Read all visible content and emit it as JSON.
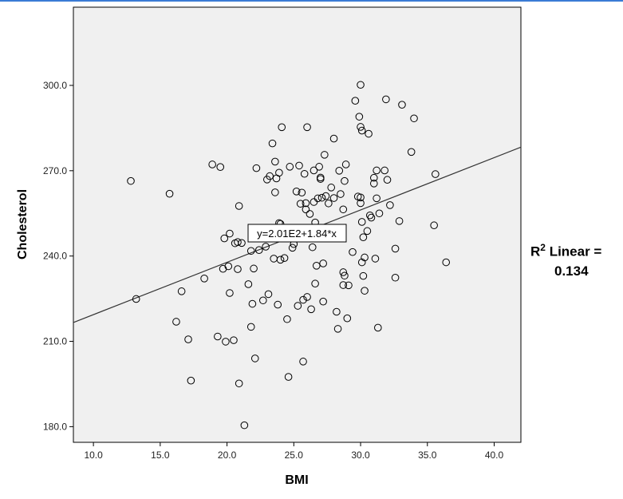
{
  "chart_data": {
    "type": "scatter",
    "xlabel": "BMI",
    "ylabel": "Cholesterol",
    "xlim": [
      8.5,
      42.0
    ],
    "ylim": [
      174.5,
      327.5
    ],
    "x_ticks": [
      "10.0",
      "15.0",
      "20.0",
      "25.0",
      "30.0",
      "35.0",
      "40.0"
    ],
    "y_ticks": [
      "180.0",
      "210.0",
      "240.0",
      "270.0",
      "300.0"
    ],
    "grid": false,
    "fit_line": {
      "equation": "y=2.01E2+1.84*x",
      "intercept": 201.0,
      "slope": 1.84,
      "r2_label_prefix": "R",
      "r2_label_sup": "2",
      "r2_label_suffix": " Linear =",
      "r2_value": "0.134"
    },
    "points": [
      [
        12.8,
        266.4
      ],
      [
        13.2,
        224.9
      ],
      [
        15.7,
        261.9
      ],
      [
        16.2,
        216.9
      ],
      [
        16.6,
        227.6
      ],
      [
        17.1,
        210.7
      ],
      [
        17.3,
        196.2
      ],
      [
        18.3,
        232.1
      ],
      [
        18.9,
        272.2
      ],
      [
        19.3,
        211.7
      ],
      [
        19.5,
        271.3
      ],
      [
        19.7,
        235.5
      ],
      [
        19.8,
        246.2
      ],
      [
        19.9,
        209.9
      ],
      [
        20.1,
        236.4
      ],
      [
        20.2,
        247.9
      ],
      [
        20.2,
        227.0
      ],
      [
        20.5,
        210.4
      ],
      [
        20.6,
        244.5
      ],
      [
        20.8,
        244.9
      ],
      [
        20.8,
        235.4
      ],
      [
        20.9,
        195.2
      ],
      [
        20.9,
        257.6
      ],
      [
        21.1,
        244.6
      ],
      [
        21.3,
        180.5
      ],
      [
        21.6,
        230.1
      ],
      [
        21.8,
        241.8
      ],
      [
        21.8,
        215.1
      ],
      [
        21.9,
        223.2
      ],
      [
        22.0,
        235.6
      ],
      [
        22.1,
        204.0
      ],
      [
        22.2,
        270.9
      ],
      [
        22.4,
        242.1
      ],
      [
        22.7,
        224.4
      ],
      [
        22.9,
        243.3
      ],
      [
        23.0,
        266.9
      ],
      [
        23.1,
        226.6
      ],
      [
        23.2,
        268.1
      ],
      [
        23.4,
        279.6
      ],
      [
        23.5,
        239.1
      ],
      [
        23.6,
        262.4
      ],
      [
        23.6,
        273.2
      ],
      [
        23.7,
        267.3
      ],
      [
        23.8,
        222.9
      ],
      [
        23.9,
        269.3
      ],
      [
        23.9,
        251.6
      ],
      [
        24.0,
        251.3
      ],
      [
        24.0,
        238.7
      ],
      [
        24.1,
        285.3
      ],
      [
        24.3,
        239.3
      ],
      [
        24.5,
        217.8
      ],
      [
        24.6,
        197.5
      ],
      [
        24.7,
        271.4
      ],
      [
        24.9,
        242.9
      ],
      [
        25.0,
        244.2
      ],
      [
        25.2,
        262.7
      ],
      [
        25.3,
        222.5
      ],
      [
        25.4,
        271.8
      ],
      [
        25.5,
        258.4
      ],
      [
        25.6,
        262.3
      ],
      [
        25.7,
        224.6
      ],
      [
        25.7,
        202.9
      ],
      [
        25.8,
        268.9
      ],
      [
        25.9,
        258.6
      ],
      [
        25.9,
        256.4
      ],
      [
        26.0,
        285.3
      ],
      [
        26.0,
        225.6
      ],
      [
        26.2,
        254.8
      ],
      [
        26.3,
        221.3
      ],
      [
        26.4,
        243.1
      ],
      [
        26.5,
        270.1
      ],
      [
        26.5,
        259.0
      ],
      [
        26.6,
        251.8
      ],
      [
        26.6,
        230.3
      ],
      [
        26.7,
        236.6
      ],
      [
        26.8,
        260.3
      ],
      [
        26.9,
        271.4
      ],
      [
        27.0,
        267.1
      ],
      [
        27.0,
        267.6
      ],
      [
        27.1,
        260.5
      ],
      [
        27.2,
        224.0
      ],
      [
        27.2,
        237.4
      ],
      [
        27.3,
        275.6
      ],
      [
        27.4,
        261.1
      ],
      [
        27.6,
        258.5
      ],
      [
        27.8,
        264.1
      ],
      [
        28.0,
        260.4
      ],
      [
        28.0,
        281.3
      ],
      [
        28.2,
        220.4
      ],
      [
        28.3,
        214.4
      ],
      [
        28.4,
        270.0
      ],
      [
        28.5,
        261.8
      ],
      [
        28.7,
        234.3
      ],
      [
        28.7,
        256.4
      ],
      [
        28.7,
        229.8
      ],
      [
        28.8,
        233.1
      ],
      [
        28.8,
        266.4
      ],
      [
        28.9,
        272.2
      ],
      [
        29.0,
        218.1
      ],
      [
        29.1,
        229.7
      ],
      [
        29.4,
        241.4
      ],
      [
        29.6,
        294.6
      ],
      [
        29.8,
        260.9
      ],
      [
        29.9,
        289.0
      ],
      [
        30.0,
        300.2
      ],
      [
        30.0,
        285.4
      ],
      [
        30.0,
        258.6
      ],
      [
        30.0,
        260.6
      ],
      [
        30.1,
        252.0
      ],
      [
        30.1,
        237.8
      ],
      [
        30.1,
        284.1
      ],
      [
        30.2,
        246.6
      ],
      [
        30.2,
        233.0
      ],
      [
        30.3,
        239.5
      ],
      [
        30.3,
        227.8
      ],
      [
        30.5,
        248.8
      ],
      [
        30.6,
        283.0
      ],
      [
        30.7,
        254.3
      ],
      [
        30.8,
        253.5
      ],
      [
        31.0,
        265.5
      ],
      [
        31.0,
        267.5
      ],
      [
        31.1,
        239.1
      ],
      [
        31.2,
        260.3
      ],
      [
        31.2,
        270.1
      ],
      [
        31.3,
        214.8
      ],
      [
        31.4,
        255.0
      ],
      [
        31.8,
        270.1
      ],
      [
        31.9,
        295.1
      ],
      [
        32.0,
        266.8
      ],
      [
        32.2,
        257.9
      ],
      [
        32.6,
        232.4
      ],
      [
        32.6,
        242.6
      ],
      [
        32.9,
        252.3
      ],
      [
        33.1,
        293.2
      ],
      [
        33.8,
        276.6
      ],
      [
        34.0,
        288.4
      ],
      [
        35.5,
        250.8
      ],
      [
        35.6,
        268.8
      ],
      [
        36.4,
        237.8
      ]
    ]
  }
}
